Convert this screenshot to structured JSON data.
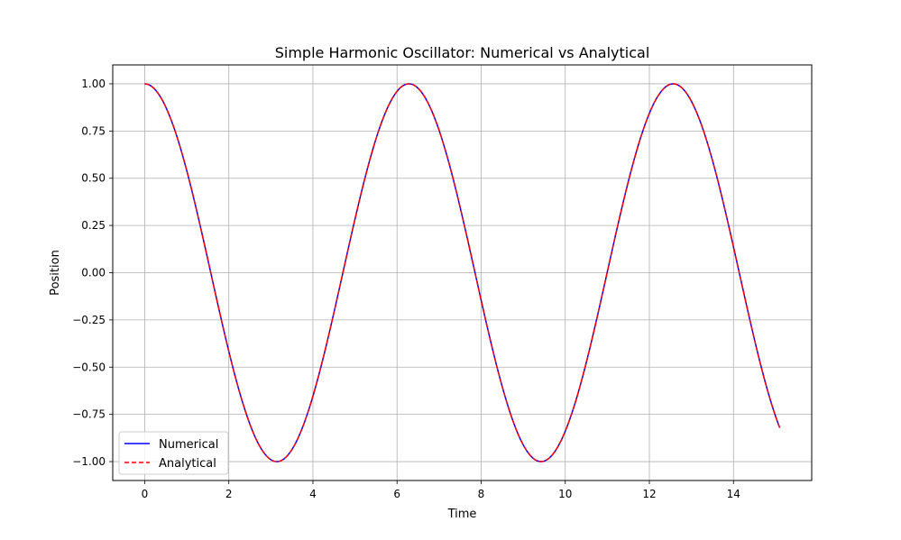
{
  "chart_data": {
    "type": "line",
    "title": "Simple Harmonic Oscillator: Numerical vs Analytical",
    "xlabel": "Time",
    "ylabel": "Position",
    "xlim": [
      -0.76,
      15.86
    ],
    "ylim": [
      -1.1,
      1.1
    ],
    "xticks": [
      0,
      2,
      4,
      6,
      8,
      10,
      12,
      14
    ],
    "yticks": [
      -1.0,
      -0.75,
      -0.5,
      -0.25,
      0.0,
      0.25,
      0.5,
      0.75,
      1.0
    ],
    "xtick_labels": [
      "0",
      "2",
      "4",
      "6",
      "8",
      "10",
      "12",
      "14"
    ],
    "ytick_labels": [
      "−1.00",
      "−0.75",
      "−0.50",
      "−0.25",
      "0.00",
      "0.25",
      "0.50",
      "0.75",
      "1.00"
    ],
    "grid": true,
    "legend_position": "lower-left",
    "x_range": [
      0,
      15.1
    ],
    "series": [
      {
        "name": "Numerical",
        "color": "#0000ff",
        "style": "solid",
        "function": "cos(t)",
        "x": [
          0,
          0.5,
          1,
          1.5,
          2,
          2.5,
          3,
          3.14,
          3.5,
          4,
          4.5,
          5,
          5.5,
          6,
          6.28,
          6.5,
          7,
          7.5,
          8,
          8.5,
          9,
          9.42,
          10,
          10.5,
          11,
          11.5,
          12,
          12.57,
          13,
          13.5,
          14,
          14.5,
          15,
          15.1
        ],
        "y": [
          1.0,
          0.878,
          0.54,
          0.071,
          -0.416,
          -0.801,
          -0.99,
          -1.0,
          -0.936,
          -0.654,
          -0.211,
          0.284,
          0.709,
          0.96,
          1.0,
          0.977,
          0.754,
          0.347,
          -0.146,
          -0.602,
          -0.911,
          -1.0,
          -0.839,
          -0.476,
          0.004,
          0.483,
          0.844,
          1.0,
          0.907,
          0.595,
          0.137,
          -0.355,
          -0.76,
          -0.82
        ]
      },
      {
        "name": "Analytical",
        "color": "#ff0000",
        "style": "dashed",
        "function": "cos(t)",
        "x": [
          0,
          0.5,
          1,
          1.5,
          2,
          2.5,
          3,
          3.14,
          3.5,
          4,
          4.5,
          5,
          5.5,
          6,
          6.28,
          6.5,
          7,
          7.5,
          8,
          8.5,
          9,
          9.42,
          10,
          10.5,
          11,
          11.5,
          12,
          12.57,
          13,
          13.5,
          14,
          14.5,
          15,
          15.1
        ],
        "y": [
          1.0,
          0.878,
          0.54,
          0.071,
          -0.416,
          -0.801,
          -0.99,
          -1.0,
          -0.936,
          -0.654,
          -0.211,
          0.284,
          0.709,
          0.96,
          1.0,
          0.977,
          0.754,
          0.347,
          -0.146,
          -0.602,
          -0.911,
          -1.0,
          -0.839,
          -0.476,
          0.004,
          0.483,
          0.844,
          1.0,
          0.907,
          0.595,
          0.137,
          -0.355,
          -0.76,
          -0.82
        ]
      }
    ]
  }
}
